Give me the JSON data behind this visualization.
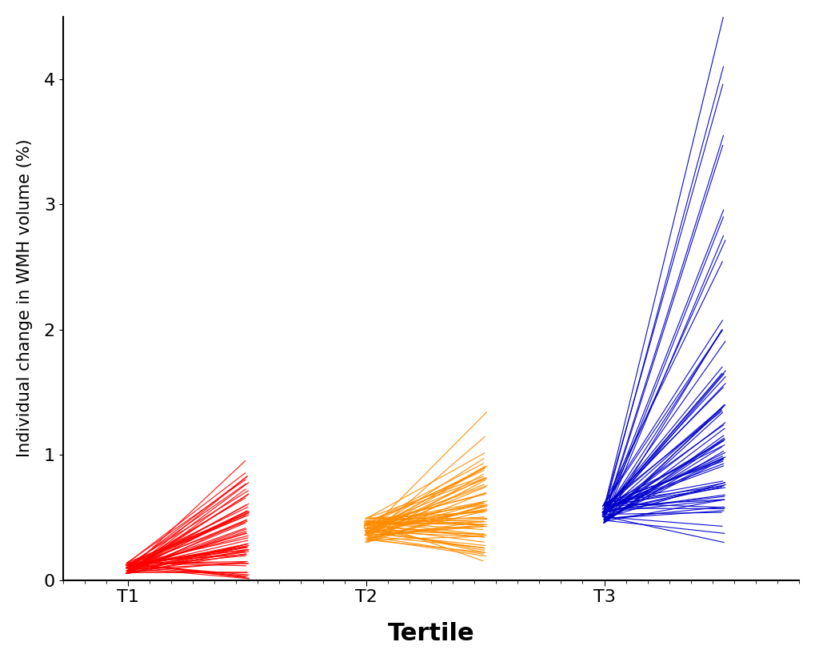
{
  "title": "",
  "xlabel": "Tertile",
  "ylabel": "Individual change in WMH volume (%)",
  "ylim": [
    0,
    4.5
  ],
  "yticks": [
    0,
    1,
    2,
    3,
    4
  ],
  "tertile_labels": [
    "T1",
    "T2",
    "T3"
  ],
  "colors": [
    "#FF0000",
    "#FF8C00",
    "#0000CC"
  ],
  "n_participants": [
    64,
    64,
    63
  ],
  "line_alpha": 0.9,
  "line_width": 0.85,
  "background_color": "#FFFFFF",
  "xlabel_fontsize": 22,
  "ylabel_fontsize": 15,
  "tick_fontsize": 16,
  "spine_linewidth": 1.5,
  "t1_x_baseline": 1.0,
  "t1_x_followup": 1.55,
  "t2_x_baseline": 2.1,
  "t2_x_followup": 2.65,
  "t3_x_baseline": 3.2,
  "t3_x_followup": 3.75,
  "xlim": [
    0.7,
    4.1
  ]
}
